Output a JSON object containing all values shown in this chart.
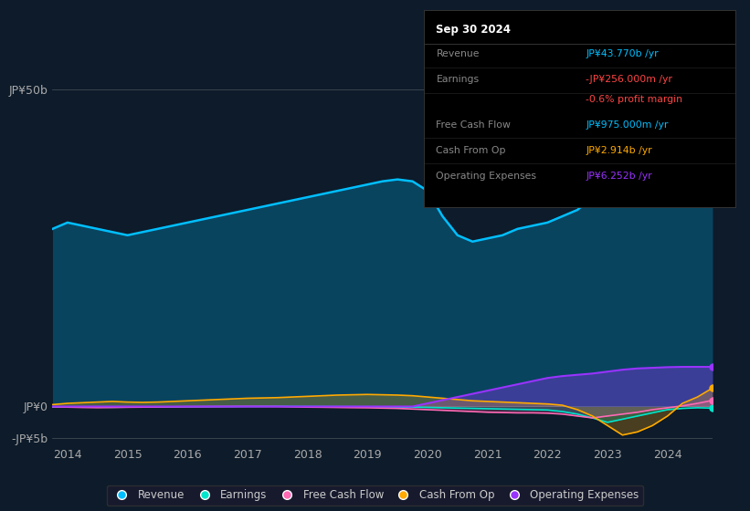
{
  "background_color": "#0d1b2a",
  "plot_bg_color": "#0d1b2a",
  "years": [
    2013.75,
    2014.0,
    2014.25,
    2014.5,
    2014.75,
    2015.0,
    2015.25,
    2015.5,
    2015.75,
    2016.0,
    2016.25,
    2016.5,
    2016.75,
    2017.0,
    2017.25,
    2017.5,
    2017.75,
    2018.0,
    2018.25,
    2018.5,
    2018.75,
    2019.0,
    2019.25,
    2019.5,
    2019.75,
    2020.0,
    2020.25,
    2020.5,
    2020.75,
    2021.0,
    2021.25,
    2021.5,
    2021.75,
    2022.0,
    2022.25,
    2022.5,
    2022.75,
    2023.0,
    2023.25,
    2023.5,
    2023.75,
    2024.0,
    2024.25,
    2024.5,
    2024.75
  ],
  "revenue": [
    28,
    29,
    28.5,
    28,
    27.5,
    27,
    27.5,
    28,
    28.5,
    29,
    29.5,
    30,
    30.5,
    31,
    31.5,
    32,
    32.5,
    33,
    33.5,
    34,
    34.5,
    35,
    35.5,
    35.8,
    35.5,
    34,
    30,
    27,
    26,
    26.5,
    27,
    28,
    28.5,
    29,
    30,
    31,
    33,
    35,
    37,
    39,
    41,
    43,
    44,
    44.5,
    43.77
  ],
  "earnings": [
    -0.1,
    -0.05,
    -0.08,
    -0.1,
    -0.12,
    -0.1,
    -0.08,
    -0.06,
    -0.05,
    -0.04,
    -0.03,
    -0.02,
    -0.01,
    0.0,
    0.01,
    0.02,
    0.01,
    0.0,
    -0.01,
    -0.02,
    -0.03,
    -0.04,
    -0.05,
    -0.08,
    -0.1,
    -0.15,
    -0.2,
    -0.25,
    -0.3,
    -0.35,
    -0.4,
    -0.45,
    -0.5,
    -0.55,
    -0.8,
    -1.2,
    -1.8,
    -2.5,
    -2.0,
    -1.5,
    -1.0,
    -0.5,
    -0.3,
    -0.2,
    -0.256
  ],
  "free_cash_flow": [
    -0.05,
    -0.1,
    -0.15,
    -0.18,
    -0.15,
    -0.12,
    -0.1,
    -0.08,
    -0.05,
    -0.03,
    -0.02,
    -0.01,
    0.0,
    0.01,
    0.0,
    -0.01,
    -0.05,
    -0.1,
    -0.12,
    -0.15,
    -0.18,
    -0.2,
    -0.25,
    -0.3,
    -0.4,
    -0.5,
    -0.6,
    -0.7,
    -0.8,
    -0.9,
    -0.95,
    -1.0,
    -1.0,
    -1.05,
    -1.2,
    -1.5,
    -1.8,
    -1.5,
    -1.2,
    -0.9,
    -0.5,
    -0.2,
    0.1,
    0.5,
    0.975
  ],
  "cash_from_op": [
    0.3,
    0.5,
    0.6,
    0.7,
    0.8,
    0.7,
    0.65,
    0.7,
    0.8,
    0.9,
    1.0,
    1.1,
    1.2,
    1.3,
    1.35,
    1.4,
    1.5,
    1.6,
    1.7,
    1.8,
    1.85,
    1.9,
    1.85,
    1.8,
    1.7,
    1.5,
    1.3,
    1.1,
    0.9,
    0.8,
    0.7,
    0.6,
    0.5,
    0.4,
    0.2,
    -0.5,
    -1.5,
    -3.0,
    -4.5,
    -4.0,
    -3.0,
    -1.5,
    0.5,
    1.5,
    2.914
  ],
  "operating_expenses": [
    0.0,
    0.0,
    0.0,
    0.0,
    0.0,
    0.0,
    0.0,
    0.0,
    0.0,
    0.0,
    0.0,
    0.0,
    0.0,
    0.0,
    0.0,
    0.0,
    0.0,
    0.0,
    0.0,
    0.0,
    0.0,
    0.0,
    0.0,
    0.0,
    0.0,
    0.5,
    1.0,
    1.5,
    2.0,
    2.5,
    3.0,
    3.5,
    4.0,
    4.5,
    4.8,
    5.0,
    5.2,
    5.5,
    5.8,
    6.0,
    6.1,
    6.2,
    6.25,
    6.252,
    6.252
  ],
  "ylim": [
    -6,
    52
  ],
  "ytick_vals": [
    -5,
    0,
    50
  ],
  "ytick_labels": [
    "-JP¥5b",
    "JP¥0",
    "JP¥50b"
  ],
  "xticks": [
    2014,
    2015,
    2016,
    2017,
    2018,
    2019,
    2020,
    2021,
    2022,
    2023,
    2024
  ],
  "colors": {
    "revenue": "#00bfff",
    "earnings": "#00e5cc",
    "free_cash_flow": "#ff69b4",
    "cash_from_op": "#ffaa00",
    "operating_expenses": "#9933ff"
  },
  "box": {
    "date": "Sep 30 2024",
    "rows": [
      {
        "label": "Revenue",
        "value": "JP¥43.770b /yr",
        "value_color": "#00bfff"
      },
      {
        "label": "Earnings",
        "value": "-JP¥256.000m /yr",
        "value_color": "#ff4444"
      },
      {
        "label": "",
        "value": "-0.6% profit margin",
        "value_color": "#ff4444"
      },
      {
        "label": "Free Cash Flow",
        "value": "JP¥975.000m /yr",
        "value_color": "#00bfff"
      },
      {
        "label": "Cash From Op",
        "value": "JP¥2.914b /yr",
        "value_color": "#ffaa00"
      },
      {
        "label": "Operating Expenses",
        "value": "JP¥6.252b /yr",
        "value_color": "#9933ff"
      }
    ]
  },
  "legend": [
    {
      "label": "Revenue",
      "color": "#00bfff"
    },
    {
      "label": "Earnings",
      "color": "#00e5cc"
    },
    {
      "label": "Free Cash Flow",
      "color": "#ff69b4"
    },
    {
      "label": "Cash From Op",
      "color": "#ffaa00"
    },
    {
      "label": "Operating Expenses",
      "color": "#9933ff"
    }
  ]
}
